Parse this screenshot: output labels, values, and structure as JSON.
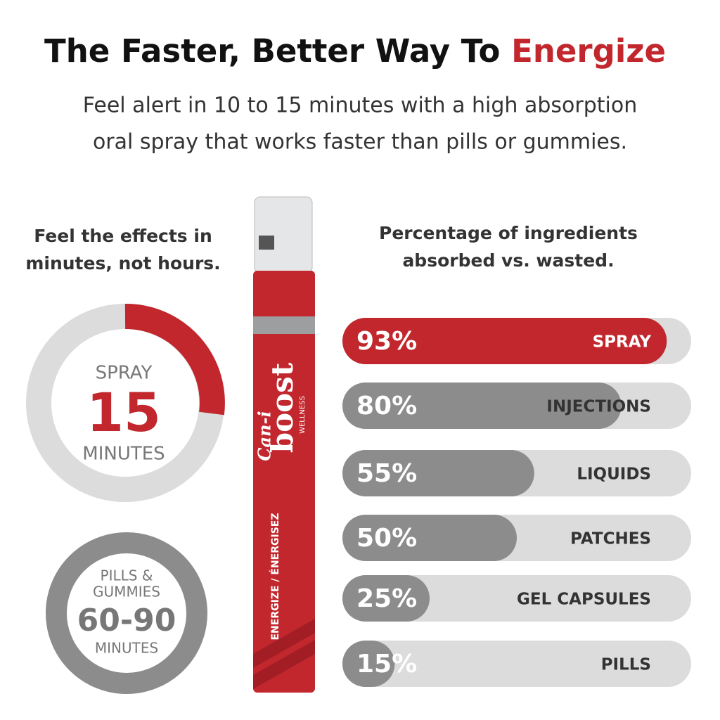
{
  "header": {
    "title": "The Faster, Better Way To",
    "title_highlight": "Energize",
    "subtitle_lines": [
      "Feel alert in 10 to 15 minutes with a high absorption",
      "oral spray that works faster than pills or gummies."
    ]
  },
  "left": {
    "heading_lines": [
      "Feel the effects in",
      "minutes, not hours."
    ],
    "spray": {
      "label": "SPRAY",
      "number": "15",
      "unit": "MINUTES"
    },
    "pills": {
      "label_lines": [
        "PILLS &",
        "GUMMIES"
      ],
      "number": "60-90",
      "unit": "MINUTES"
    }
  },
  "product": {
    "brand_prefix": "Can-i",
    "brand": "boost",
    "line": "WELLNESS",
    "flavor": "ENERGIZE / ÉNERGISEZ"
  },
  "chart_data": {
    "type": "bar",
    "title_lines": [
      "Percentage of ingredients",
      "absorbed vs. wasted."
    ],
    "categories": [
      "SPRAY",
      "INJECTIONS",
      "LIQUIDS",
      "PATCHES",
      "GEL CAPSULES",
      "PILLS"
    ],
    "values": [
      93,
      80,
      55,
      50,
      25,
      15
    ],
    "value_labels": [
      "93%",
      "80%",
      "55%",
      "50%",
      "25%",
      "15%"
    ],
    "xlim": [
      0,
      100
    ],
    "colors": [
      "#c1272d",
      "#8c8c8c",
      "#8c8c8c",
      "#8c8c8c",
      "#8c8c8c",
      "#8c8c8c"
    ],
    "track_color": "#dcdcdc"
  }
}
